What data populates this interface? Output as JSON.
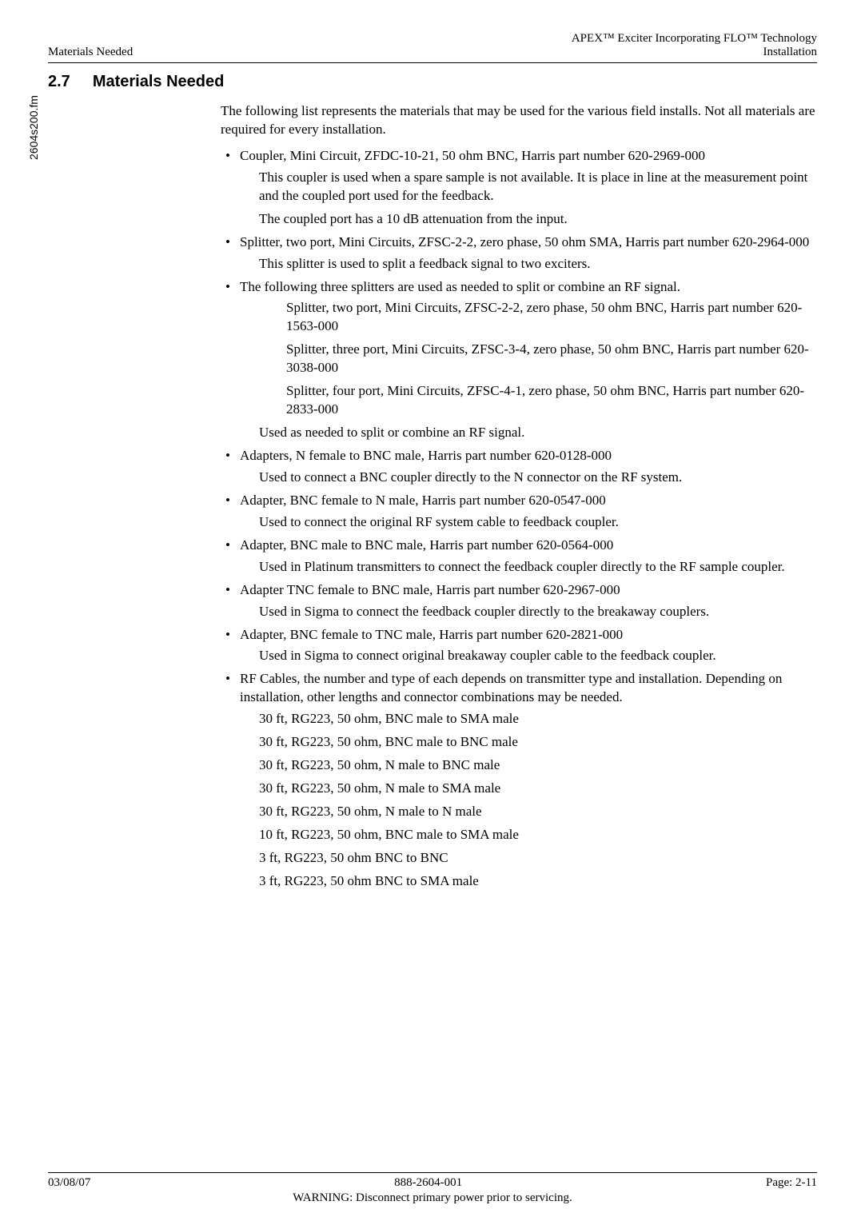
{
  "header": {
    "left": "Materials Needed",
    "right_line1": "APEX™ Exciter Incorporating FLO™ Technology",
    "right_line2": "Installation"
  },
  "sidebar": {
    "filename": "2604s200.fm"
  },
  "section": {
    "number": "2.7",
    "title": "Materials Needed"
  },
  "intro": "The following list represents the materials that may be used for the various field installs. Not all materials are required for every installation.",
  "items": [
    {
      "main": "Coupler, Mini Circuit, ZFDC-10-21, 50 ohm BNC, Harris part number 620-2969-000",
      "subs": [
        "This coupler is used when a spare sample is not available. It is place in line at the measurement point and the coupled port used for the feedback.",
        "The coupled port has a 10 dB attenuation from the input."
      ]
    },
    {
      "main": "Splitter, two port, Mini Circuits, ZFSC-2-2, zero phase, 50 ohm SMA, Harris part number 620-2964-000",
      "subs": [
        "This splitter is used to split a feedback signal to two exciters."
      ]
    },
    {
      "main": "The following three splitters are used as needed to split or combine an RF signal.",
      "nested": [
        "Splitter, two port, Mini Circuits, ZFSC-2-2, zero phase, 50 ohm BNC, Harris part number 620-1563-000",
        "Splitter, three port, Mini Circuits, ZFSC-3-4, zero phase, 50 ohm BNC, Harris part number 620-3038-000",
        "Splitter, four port, Mini Circuits, ZFSC-4-1, zero phase, 50 ohm BNC, Harris part number 620-2833-000"
      ],
      "subs": [
        "Used as needed to split or combine an RF signal."
      ]
    },
    {
      "main": "Adapters, N female to BNC male, Harris part number 620-0128-000",
      "subs": [
        "Used to connect a BNC coupler directly to the N connector on the RF system."
      ]
    },
    {
      "main": "Adapter, BNC female to N male, Harris part number 620-0547-000",
      "subs": [
        "Used to connect the original RF system cable to feedback coupler."
      ]
    },
    {
      "main": "Adapter, BNC male to BNC male, Harris part number 620-0564-000",
      "subs": [
        "Used in Platinum transmitters to connect the feedback coupler directly to the RF sample coupler."
      ]
    },
    {
      "main": "Adapter TNC female to BNC male, Harris part number 620-2967-000",
      "subs": [
        "Used in Sigma to connect the feedback coupler directly to the breakaway couplers."
      ]
    },
    {
      "main": "Adapter, BNC female to TNC male, Harris part number 620-2821-000",
      "subs": [
        "Used in Sigma to connect original breakaway coupler cable to the feedback coupler."
      ]
    },
    {
      "main": "RF Cables, the number and type of each depends on transmitter type and installation. Depending on installation, other lengths and connector combinations may be needed.",
      "subs": [
        "30 ft, RG223, 50 ohm, BNC male to SMA male",
        "30 ft, RG223, 50 ohm, BNC male to BNC male",
        "30 ft, RG223, 50 ohm, N male to BNC male",
        "30 ft, RG223, 50 ohm, N male to SMA male",
        "30 ft, RG223, 50 ohm, N male to N male",
        "10 ft, RG223, 50 ohm, BNC male to SMA male",
        "3 ft, RG223, 50 ohm BNC to BNC",
        "3 ft, RG223, 50 ohm BNC to SMA male"
      ]
    }
  ],
  "footer": {
    "date": "03/08/07",
    "docnum": "888-2604-001",
    "page": "Page: 2-11",
    "warning": "WARNING: Disconnect primary power prior to servicing."
  }
}
